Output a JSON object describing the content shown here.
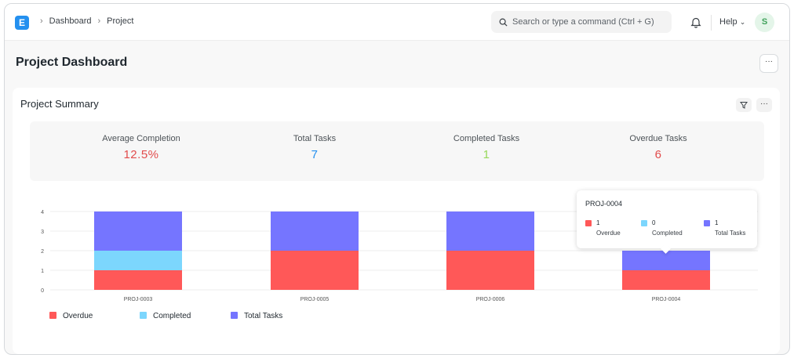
{
  "navbar": {
    "logo_letter": "E",
    "breadcrumbs": [
      "Dashboard",
      "Project"
    ],
    "search_placeholder": "Search or type a command (Ctrl + G)",
    "help_label": "Help",
    "avatar_letter": "S"
  },
  "page": {
    "title": "Project Dashboard",
    "menu_label": "···"
  },
  "card": {
    "title": "Project Summary",
    "more_label": "···",
    "stats": [
      {
        "label": "Average Completion",
        "value": "12.5%",
        "color": "#e24c4c"
      },
      {
        "label": "Total Tasks",
        "value": "7",
        "color": "#2490ef"
      },
      {
        "label": "Completed Tasks",
        "value": "1",
        "color": "#98d85b"
      },
      {
        "label": "Overdue Tasks",
        "value": "6",
        "color": "#e24c4c"
      }
    ]
  },
  "chart_data": {
    "type": "bar",
    "stacked": true,
    "categories": [
      "PROJ-0003",
      "PROJ-0005",
      "PROJ-0006",
      "PROJ-0004"
    ],
    "series": [
      {
        "name": "Overdue",
        "color": "#ff5858",
        "values": [
          1,
          2,
          2,
          1
        ]
      },
      {
        "name": "Completed",
        "color": "#7cd6fd",
        "values": [
          1,
          0,
          0,
          0
        ]
      },
      {
        "name": "Total Tasks",
        "color": "#7575ff",
        "values": [
          2,
          2,
          2,
          1
        ]
      }
    ],
    "yticks": [
      0,
      1,
      2,
      3,
      4
    ],
    "ylim": [
      0,
      4
    ],
    "legend_position": "bottom-left"
  },
  "tooltip": {
    "title": "PROJ-0004",
    "items": [
      {
        "value": "1",
        "label": "Overdue",
        "color": "#ff5858"
      },
      {
        "value": "0",
        "label": "Completed",
        "color": "#7cd6fd"
      },
      {
        "value": "1",
        "label": "Total Tasks",
        "color": "#7575ff"
      }
    ]
  }
}
